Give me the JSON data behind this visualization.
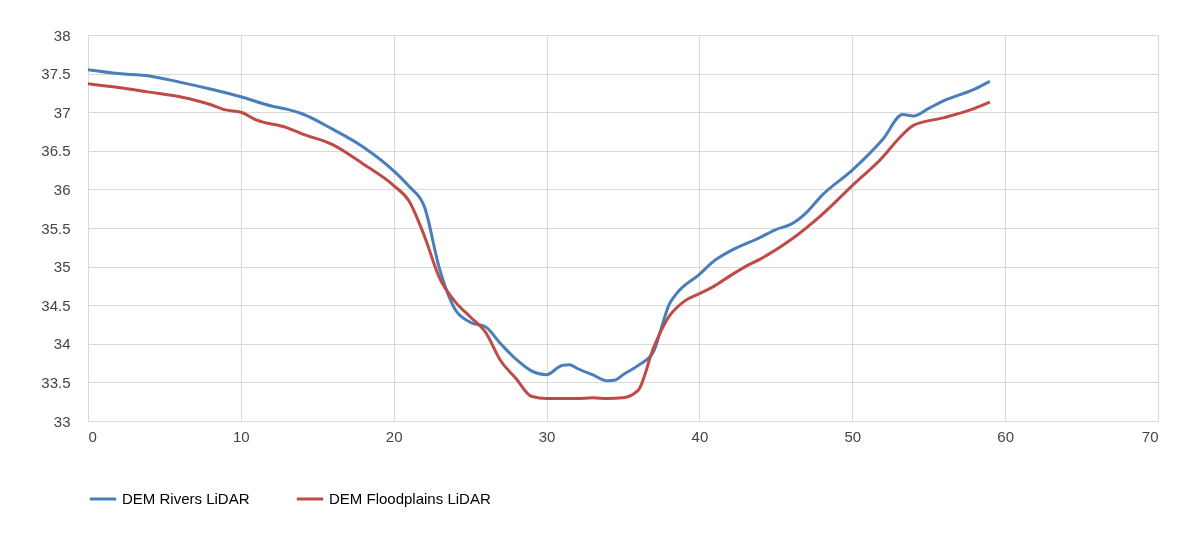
{
  "chart_data": {
    "type": "line",
    "xlim": [
      0,
      70
    ],
    "xticks": [
      0,
      10,
      20,
      30,
      40,
      50,
      60,
      70
    ],
    "ylim": [
      33,
      38
    ],
    "yticks": [
      33,
      33.5,
      34,
      34.5,
      35,
      35.5,
      36,
      36.5,
      37,
      37.5,
      38
    ],
    "grid": true,
    "legend": "bottom",
    "marker": "none",
    "line_style": "solid",
    "series": [
      {
        "name": "DEM Rivers LiDAR",
        "color": "#4a7ebb",
        "x": [
          0,
          2,
          4,
          6,
          8,
          10,
          12,
          13,
          14,
          16,
          18,
          20,
          21,
          22,
          23,
          24,
          25,
          26,
          27,
          28,
          29,
          30,
          31,
          31.5,
          32,
          33,
          34,
          34.5,
          35,
          36,
          37,
          37.5,
          38,
          38.5,
          40,
          41,
          42,
          44,
          45,
          46,
          47,
          48,
          50,
          52,
          53.3,
          54,
          55,
          56,
          58,
          59
        ],
        "values": [
          37.55,
          37.5,
          37.47,
          37.39,
          37.3,
          37.2,
          37.08,
          37.04,
          36.98,
          36.78,
          36.55,
          36.24,
          36.04,
          35.78,
          34.97,
          34.45,
          34.28,
          34.22,
          34,
          33.8,
          33.65,
          33.6,
          33.72,
          33.73,
          33.68,
          33.6,
          33.52,
          33.53,
          33.6,
          33.72,
          33.9,
          34.2,
          34.5,
          34.65,
          34.9,
          35.08,
          35.2,
          35.38,
          35.48,
          35.55,
          35.7,
          35.92,
          36.25,
          36.65,
          36.97,
          36.95,
          37.05,
          37.15,
          37.3,
          37.4
        ]
      },
      {
        "name": "DEM Floodplains LiDAR",
        "color": "#be4b48",
        "x": [
          0,
          2,
          4,
          6,
          8,
          9,
          10,
          11,
          13,
          14,
          16,
          18,
          20,
          21,
          22,
          23,
          24,
          25,
          26,
          27,
          28,
          29,
          30,
          32,
          33,
          34,
          35,
          36,
          37,
          38,
          39,
          40,
          41,
          42,
          43,
          44,
          46,
          48,
          50,
          52,
          53,
          54,
          56,
          58,
          59
        ],
        "values": [
          37.37,
          37.32,
          37.26,
          37.2,
          37.1,
          37.03,
          37,
          36.9,
          36.8,
          36.72,
          36.58,
          36.33,
          36.05,
          35.85,
          35.4,
          34.85,
          34.55,
          34.35,
          34.15,
          33.78,
          33.55,
          33.32,
          33.29,
          33.29,
          33.3,
          33.29,
          33.3,
          33.4,
          33.95,
          34.35,
          34.55,
          34.65,
          34.75,
          34.88,
          35,
          35.1,
          35.35,
          35.67,
          36.05,
          36.42,
          36.65,
          36.83,
          36.93,
          37.05,
          37.13
        ]
      }
    ]
  }
}
